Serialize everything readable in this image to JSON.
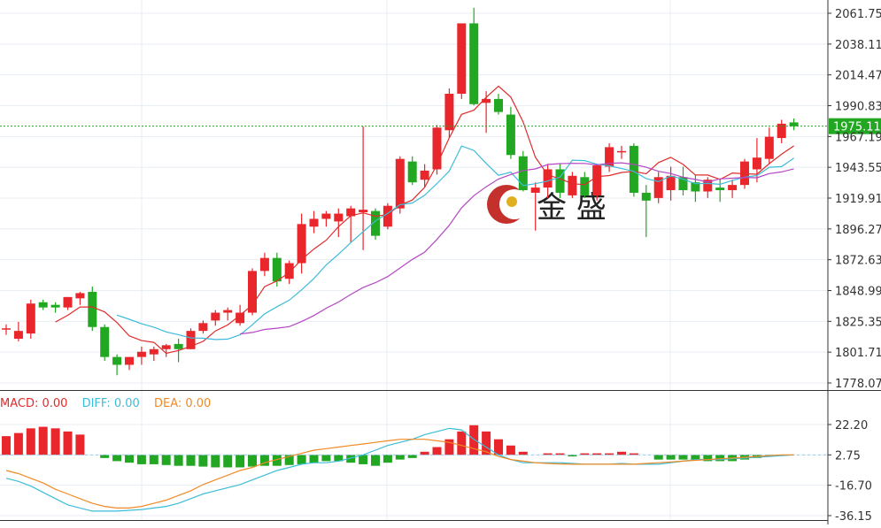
{
  "chart_data": [
    {
      "type": "candlestick",
      "price_axis": {
        "ylim": [
          1778.07,
          2061.75
        ],
        "ticks": [
          "2061.75",
          "2038.11",
          "2014.47",
          "1990.83",
          "1967.19",
          "1943.55",
          "1919.91",
          "1896.27",
          "1872.63",
          "1848.99",
          "1825.35",
          "1801.71",
          "1778.07"
        ]
      },
      "last_price": "1975.11",
      "watermark": "金 盛",
      "candles": [
        [
          1819,
          1823,
          1815,
          1820
        ],
        [
          1812,
          1825,
          1810,
          1818
        ],
        [
          1816,
          1842,
          1812,
          1839
        ],
        [
          1840,
          1842,
          1834,
          1836
        ],
        [
          1838,
          1840,
          1832,
          1836
        ],
        [
          1836,
          1844,
          1834,
          1844
        ],
        [
          1843,
          1848,
          1838,
          1847
        ],
        [
          1848,
          1852,
          1818,
          1821
        ],
        [
          1821,
          1823,
          1795,
          1798
        ],
        [
          1798,
          1800,
          1784,
          1792
        ],
        [
          1792,
          1798,
          1788,
          1798
        ],
        [
          1798,
          1806,
          1792,
          1802
        ],
        [
          1800,
          1806,
          1795,
          1804
        ],
        [
          1804,
          1808,
          1798,
          1807
        ],
        [
          1808,
          1812,
          1794,
          1804
        ],
        [
          1804,
          1820,
          1804,
          1818
        ],
        [
          1818,
          1826,
          1816,
          1824
        ],
        [
          1826,
          1834,
          1822,
          1832
        ],
        [
          1832,
          1836,
          1826,
          1834
        ],
        [
          1824,
          1838,
          1822,
          1832
        ],
        [
          1832,
          1866,
          1830,
          1864
        ],
        [
          1864,
          1878,
          1860,
          1874
        ],
        [
          1874,
          1878,
          1852,
          1856
        ],
        [
          1858,
          1872,
          1854,
          1870
        ],
        [
          1870,
          1908,
          1862,
          1900
        ],
        [
          1898,
          1910,
          1893,
          1904
        ],
        [
          1904,
          1910,
          1898,
          1908
        ],
        [
          1902,
          1912,
          1890,
          1908
        ],
        [
          1906,
          1914,
          1886,
          1912
        ],
        [
          1909,
          1975,
          1880,
          1911
        ],
        [
          1910,
          1912,
          1888,
          1891
        ],
        [
          1898,
          1916,
          1896,
          1914
        ],
        [
          1912,
          1952,
          1908,
          1950
        ],
        [
          1948,
          1952,
          1930,
          1932
        ],
        [
          1934,
          1946,
          1928,
          1941
        ],
        [
          1942,
          1976,
          1938,
          1974
        ],
        [
          1972,
          2004,
          1966,
          2000
        ],
        [
          2000,
          2054,
          1996,
          2054
        ],
        [
          2054,
          2066,
          1991,
          1992
        ],
        [
          1993,
          2002,
          1970,
          1996
        ],
        [
          1996,
          2000,
          1984,
          1986
        ],
        [
          1984,
          1990,
          1950,
          1953
        ],
        [
          1952,
          1956,
          1925,
          1926
        ],
        [
          1924,
          1932,
          1895,
          1928
        ],
        [
          1928,
          1946,
          1920,
          1942
        ],
        [
          1942,
          1946,
          1920,
          1924
        ],
        [
          1922,
          1940,
          1920,
          1937
        ],
        [
          1936,
          1940,
          1920,
          1922
        ],
        [
          1922,
          1946,
          1918,
          1945
        ],
        [
          1944,
          1962,
          1940,
          1959
        ],
        [
          1955,
          1960,
          1950,
          1956
        ],
        [
          1960,
          1962,
          1921,
          1924
        ],
        [
          1924,
          1930,
          1890,
          1918
        ],
        [
          1920,
          1940,
          1916,
          1936
        ],
        [
          1926,
          1944,
          1918,
          1937
        ],
        [
          1936,
          1944,
          1922,
          1926
        ],
        [
          1932,
          1938,
          1917,
          1925
        ],
        [
          1925,
          1936,
          1920,
          1934
        ],
        [
          1928,
          1935,
          1917,
          1926
        ],
        [
          1926,
          1934,
          1920,
          1930
        ],
        [
          1930,
          1950,
          1927,
          1948
        ],
        [
          1942,
          1966,
          1932,
          1951
        ],
        [
          1950,
          1974,
          1946,
          1967
        ],
        [
          1966,
          1980,
          1962,
          1977
        ],
        [
          1978,
          1981,
          1972,
          1975
        ]
      ],
      "ma_lines": [
        {
          "color": "#e02b2b",
          "values": [
            null,
            null,
            null,
            null,
            1824.8,
            1830.0,
            1836.4,
            1836.4,
            1832.6,
            1824.4,
            1814.2,
            1810.6,
            1809.2,
            1800.8,
            1803.0,
            1806.2,
            1810.0,
            1818.0,
            1822.6,
            1830.0,
            1838.0,
            1852.0,
            1856.4,
            1862.8,
            1872.8,
            1880.8,
            1887.6,
            1898.0,
            1906.4,
            1908.6,
            1906.0,
            1907.2,
            1914.6,
            1918.4,
            1928.2,
            1945.4,
            1966.2,
            1984.2,
            1987.4,
            1997.2,
            2005.8,
            1997.4,
            1978.4,
            1951.2,
            1937.6,
            1934.8,
            1931.0,
            1930.2,
            1936.4,
            1937.2,
            1939.6,
            1940.4,
            1938.6,
            1947.2,
            1951.2,
            1945.8,
            1937.6,
            1937.6,
            1934.2,
            1939.2,
            1938.6,
            1938.2,
            1946.4,
            1953.6,
            1960.0
          ]
        },
        {
          "color": "#3cbcd8",
          "values": [
            null,
            null,
            null,
            null,
            null,
            null,
            null,
            null,
            null,
            1830.1,
            1826.9,
            1823.5,
            1820.9,
            1817.2,
            1815.1,
            1812.6,
            1812.4,
            1811.4,
            1811.7,
            1815.0,
            1822.7,
            1831.1,
            1836.6,
            1841.6,
            1849.5,
            1858.2,
            1868.7,
            1876.9,
            1885.8,
            1894.1,
            1902.4,
            1908.2,
            1914.8,
            1916.2,
            1922.1,
            1931.1,
            1940.7,
            1959.9,
            1956.5,
            1946.5,
            1937.4,
            1939.8,
            1929.5,
            1931.0,
            1933.0,
            1936.0,
            1949.0,
            1948.7,
            1945.9,
            1944.7,
            1942.6,
            1940.4,
            1934.9,
            1932.6,
            1936.9,
            1934.4,
            1931.0,
            1931.2,
            1930.5,
            1933.4,
            1936.0,
            1937.2,
            1943.6,
            1944.1,
            1950.6
          ]
        },
        {
          "color": "#b546c4",
          "values": [
            null,
            null,
            null,
            null,
            null,
            null,
            null,
            null,
            null,
            null,
            null,
            null,
            null,
            null,
            null,
            null,
            null,
            null,
            null,
            1815.7,
            1816.8,
            1819.1,
            1820.1,
            1821.3,
            1825.2,
            1829.8,
            1835.4,
            1840.2,
            1846.0,
            1851.3,
            1855.0,
            1859.7,
            1866.3,
            1872.9,
            1878.4,
            1888.2,
            1899.1,
            1912.5,
            1921.8,
            1928.6,
            1934.6,
            1938.0,
            1941.1,
            1942.3,
            1945.7,
            1946.4,
            1946.6,
            1946.5,
            1945.4,
            1946.6,
            1947.0,
            1945.8,
            1943.6,
            1940.5,
            1938.8,
            1935.9,
            1934.2,
            1932.3,
            1934.7,
            1935.2,
            1935.8,
            1935.5,
            1938.7,
            1940.0,
            1942.4
          ]
        }
      ]
    },
    {
      "type": "macd",
      "legend": [
        {
          "text": "MACD: 0.00",
          "color": "#e02b2b"
        },
        {
          "text": "DIFF: 0.00",
          "color": "#3cbcd8"
        },
        {
          "text": "DEA: 0.00",
          "color": "#f08a24"
        }
      ],
      "ylim": [
        -36.15,
        22.2
      ],
      "ticks": [
        "22.20",
        "2.75",
        "-16.70",
        "-36.15"
      ],
      "histogram": [
        12,
        14,
        17,
        18,
        17,
        15,
        13,
        0,
        -2,
        -4,
        -5,
        -6,
        -6,
        -6.5,
        -7,
        -7,
        -7.5,
        -8,
        -8,
        -8,
        -7.5,
        -7,
        -7,
        -6.5,
        -6,
        -5,
        -4,
        -4,
        -5,
        -6,
        -7,
        -5,
        -3,
        -2,
        2,
        5,
        10,
        15,
        19,
        15,
        10,
        6,
        2,
        0,
        1,
        1,
        -1,
        1,
        1,
        1,
        2,
        1,
        0,
        -3,
        -3,
        -3,
        -3,
        -4,
        -4,
        -4,
        -3,
        -2,
        -1,
        0,
        0
      ],
      "diff": [
        -15,
        -17,
        -20,
        -24,
        -28,
        -32,
        -34,
        -36,
        -36,
        -36,
        -35.5,
        -35,
        -34,
        -33,
        -31,
        -28,
        -25,
        -23,
        -21,
        -19,
        -16,
        -13,
        -10,
        -8,
        -6,
        -5,
        -5,
        -4,
        -2,
        0,
        3,
        6,
        8,
        10,
        13,
        15,
        17,
        16,
        10,
        5,
        0,
        -3,
        -5,
        -5,
        -5,
        -5,
        -5.5,
        -6,
        -6,
        -6,
        -5.5,
        -6,
        -6,
        -6,
        -5,
        -4,
        -3,
        -3,
        -3,
        -2.5,
        -2,
        -1.5,
        -1,
        -0.5,
        0
      ],
      "dea": [
        -10,
        -12,
        -15,
        -18,
        -22,
        -25,
        -28,
        -31,
        -33,
        -34,
        -34,
        -33,
        -31,
        -29,
        -26,
        -23,
        -19,
        -16,
        -13,
        -10,
        -8,
        -5,
        -3,
        -1,
        1,
        3,
        4,
        5,
        6,
        7,
        8,
        9,
        10,
        10,
        10,
        9,
        8,
        6,
        4,
        2,
        -1,
        -3,
        -4,
        -5,
        -5.5,
        -5.8,
        -6,
        -6,
        -6,
        -6,
        -6,
        -6,
        -5.5,
        -5,
        -4.5,
        -4,
        -3.5,
        -3,
        -2.5,
        -2,
        -1.5,
        -1,
        -0.5,
        0,
        0
      ]
    }
  ]
}
